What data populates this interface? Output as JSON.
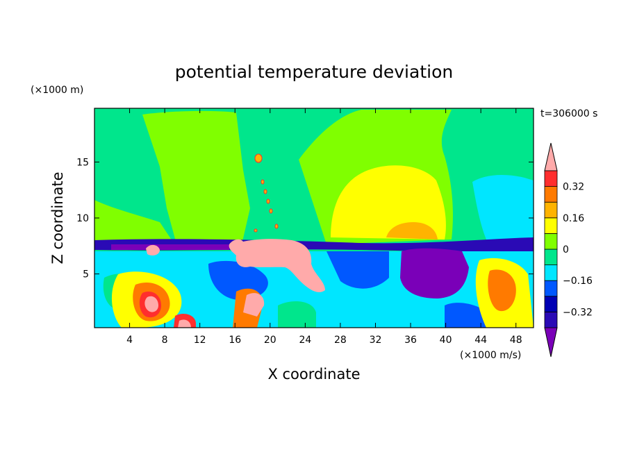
{
  "chart_data": {
    "type": "heatmap",
    "title": "potential temperature deviation",
    "xlabel": "X coordinate",
    "ylabel": "Z coordinate",
    "x_unit": "(×1000 m/s)",
    "y_unit": "(×1000 m)",
    "time_label": "t=306000 s",
    "xlim": [
      0,
      50
    ],
    "ylim": [
      0.2,
      19.8
    ],
    "x_ticks": [
      4,
      8,
      12,
      16,
      20,
      24,
      28,
      32,
      36,
      40,
      44,
      48
    ],
    "y_ticks": [
      5,
      10,
      15
    ],
    "colorbar": {
      "levels": [
        -0.48,
        -0.4,
        -0.32,
        -0.24,
        -0.16,
        -0.08,
        0,
        0.08,
        0.16,
        0.24,
        0.32,
        0.4
      ],
      "tick_labels": [
        "-0.32",
        "-0.16",
        "0",
        "0.16",
        "0.32"
      ],
      "tick_values": [
        -0.32,
        -0.16,
        0,
        0.16,
        0.32
      ],
      "colors": [
        "#7a00b8",
        "#2a0ab5",
        "#0000b4",
        "#0058ff",
        "#00e6ff",
        "#00e68c",
        "#80ff00",
        "#ffff00",
        "#ffb300",
        "#ff7a00",
        "#ff2e2e",
        "#ffaaaa"
      ]
    },
    "regions": [
      {
        "name": "upper-left-plume",
        "level_index": 6
      },
      {
        "name": "upper-right-plume",
        "level_index": 6
      },
      {
        "name": "warm-dome",
        "level_index": 7
      },
      {
        "name": "warm-core",
        "level_index": 8
      },
      {
        "name": "cold-layer",
        "level_index": 1
      },
      {
        "name": "cold-pool",
        "level_index": 0
      },
      {
        "name": "hot-anomaly",
        "level_index": 11
      }
    ]
  }
}
